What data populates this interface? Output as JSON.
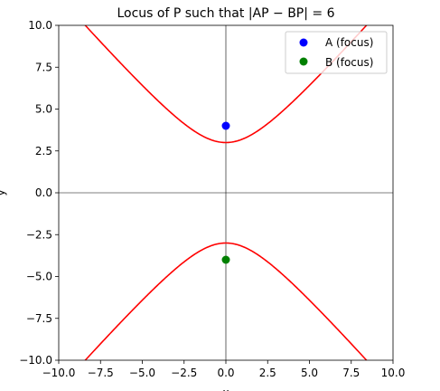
{
  "chart_data": {
    "type": "line",
    "title": "Locus of P such that |AP − BP| = 6",
    "xlabel": "x",
    "ylabel": "y",
    "xlim": [
      -10,
      10
    ],
    "ylim": [
      -10,
      10
    ],
    "xticks": [
      -10,
      -7.5,
      -5,
      -2.5,
      0,
      2.5,
      5,
      7.5,
      10
    ],
    "xtick_labels": [
      "−10.0",
      "−7.5",
      "−5.0",
      "−2.5",
      "0.0",
      "2.5",
      "5.0",
      "7.5",
      "10.0"
    ],
    "yticks": [
      -10,
      -7.5,
      -5,
      -2.5,
      0,
      2.5,
      5,
      7.5,
      10
    ],
    "ytick_labels": [
      "−10.0",
      "−7.5",
      "−5.0",
      "−2.5",
      "0.0",
      "2.5",
      "5.0",
      "7.5",
      "10.0"
    ],
    "grid": false,
    "legend_position": "top-right",
    "hyperbola": {
      "a": 3,
      "b": 2.6458,
      "orientation": "vertical",
      "color": "#ff0000"
    },
    "series": [
      {
        "kind": "line",
        "color": "#ff0000",
        "x": [
          -8.5,
          -6,
          -4,
          -2,
          0,
          2,
          4,
          6,
          8.5
        ],
        "y": [
          9.9,
          7.7,
          5.9,
          4.3,
          3.0,
          4.3,
          5.9,
          7.7,
          9.9
        ]
      },
      {
        "kind": "line",
        "color": "#ff0000",
        "x": [
          -8.5,
          -6,
          -4,
          -2,
          0,
          2,
          4,
          6,
          8.5
        ],
        "y": [
          -9.9,
          -7.7,
          -5.9,
          -4.3,
          -3.0,
          -4.3,
          -5.9,
          -7.7,
          -9.9
        ]
      },
      {
        "kind": "point",
        "name": "A (focus)",
        "color": "#0000ff",
        "x": [
          0
        ],
        "y": [
          4
        ]
      },
      {
        "kind": "point",
        "name": "B (focus)",
        "color": "#008000",
        "x": [
          0
        ],
        "y": [
          -4
        ]
      }
    ]
  }
}
